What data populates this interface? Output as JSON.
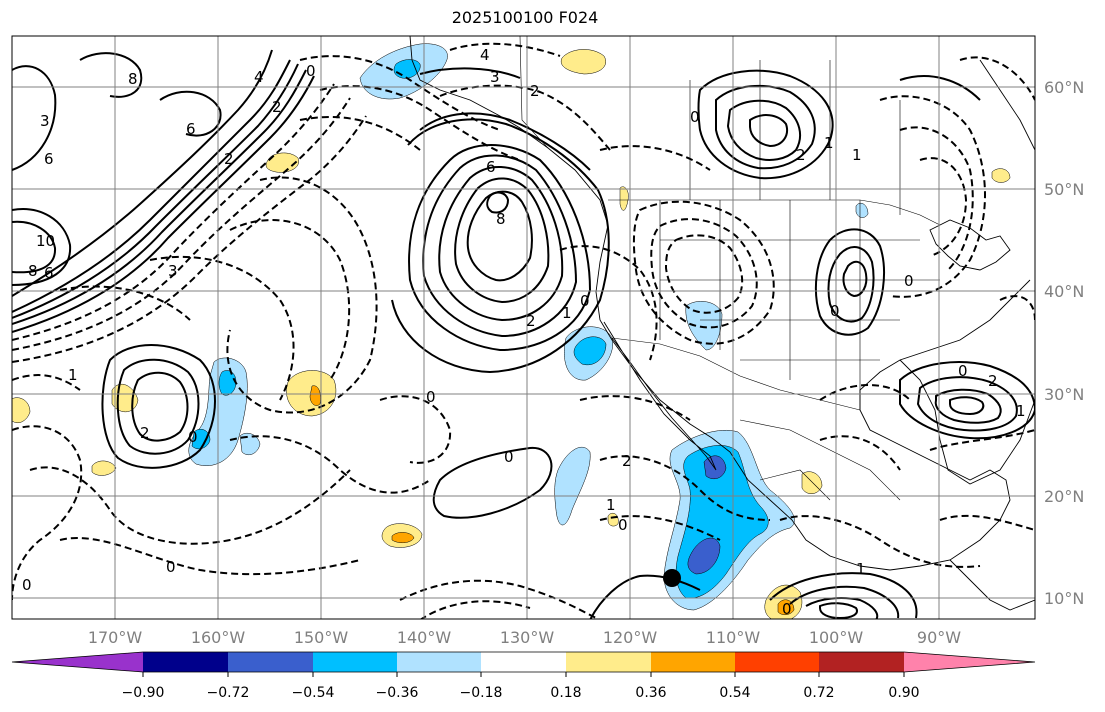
{
  "title": "2025100100 F024",
  "latitudes": [
    "60°N",
    "50°N",
    "40°N",
    "30°N",
    "20°N",
    "10°N"
  ],
  "longitudes": [
    "170°W",
    "160°W",
    "150°W",
    "140°W",
    "130°W",
    "120°W",
    "110°W",
    "100°W",
    "90°W"
  ],
  "colorbar": {
    "ticks": [
      "−0.90",
      "−0.72",
      "−0.54",
      "−0.36",
      "−0.18",
      "0.18",
      "0.36",
      "0.54",
      "0.72",
      "0.90"
    ],
    "colors": [
      "#9932cc",
      "#00008b",
      "#3a5fcd",
      "#00bfff",
      "#b0e2ff",
      "#ffffff",
      "#ffec8b",
      "#ffa500",
      "#ff4000",
      "#b22222",
      "#ff82ab"
    ]
  },
  "contour_labels": [
    "4",
    "3",
    "2",
    "0",
    "8",
    "6",
    "4",
    "2",
    "3",
    "2",
    "6",
    "8",
    "10",
    "8",
    "6",
    "3",
    "6",
    "2",
    "1",
    "0",
    "2",
    "1",
    "0",
    "1",
    "2",
    "0",
    "0",
    "2",
    "1",
    "0",
    "1",
    "0",
    "0",
    "2",
    "1",
    "0",
    "0",
    "1",
    "0",
    "0",
    "0"
  ],
  "marker": "storm-center"
}
